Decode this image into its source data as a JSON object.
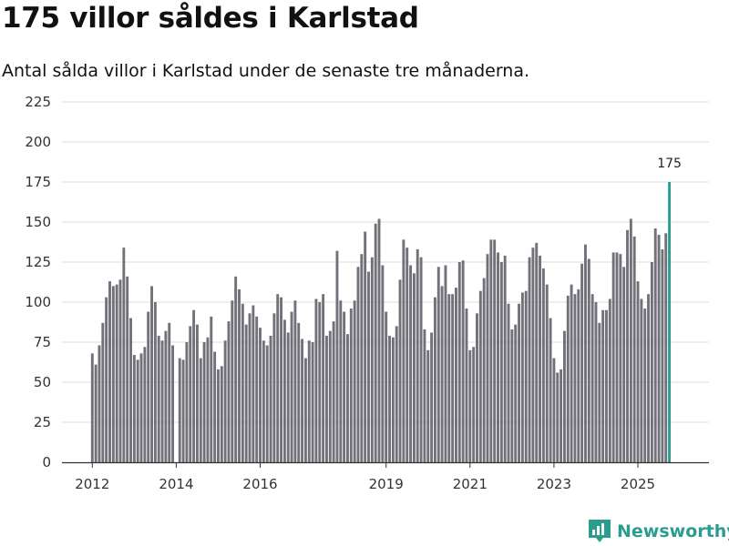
{
  "header": {
    "title": "175 villor såldes i Karlstad",
    "subtitle": "Antal sålda villor i Karlstad under de senaste tre månaderna."
  },
  "brand": {
    "name": "Newsworthy",
    "icon": "chart-bars-icon",
    "color": "#2a9d8f"
  },
  "colors": {
    "bar": "#727078",
    "highlight": "#2a9d8f",
    "grid": "#dddddd",
    "axis": "#333333"
  },
  "chart_data": {
    "type": "bar",
    "title": "175 villor såldes i Karlstad",
    "subtitle": "Antal sålda villor i Karlstad under de senaste tre månaderna.",
    "xlabel": "",
    "ylabel": "",
    "ylim": [
      0,
      225
    ],
    "yticks": [
      "0",
      "25",
      "50",
      "75",
      "100",
      "125",
      "150",
      "175",
      "200",
      "225"
    ],
    "xticks": [
      "2012",
      "2014",
      "2016",
      "2019",
      "2021",
      "2023",
      "2025"
    ],
    "grid": true,
    "x_start": "2012-01",
    "x_end": "2025-12",
    "values": [
      68,
      61,
      73,
      87,
      103,
      113,
      110,
      111,
      114,
      134,
      116,
      90,
      67,
      64,
      68,
      72,
      94,
      110,
      100,
      79,
      76,
      82,
      87,
      73,
      0,
      65,
      64,
      75,
      85,
      95,
      86,
      65,
      75,
      78,
      91,
      69,
      58,
      60,
      76,
      88,
      101,
      116,
      108,
      99,
      86,
      93,
      98,
      91,
      84,
      76,
      73,
      79,
      93,
      105,
      103,
      89,
      81,
      94,
      101,
      87,
      77,
      65,
      76,
      75,
      102,
      100,
      105,
      79,
      82,
      88,
      132,
      101,
      94,
      80,
      96,
      101,
      122,
      130,
      144,
      119,
      128,
      149,
      152,
      123,
      94,
      79,
      78,
      85,
      114,
      139,
      134,
      123,
      118,
      133,
      128,
      83,
      70,
      81,
      103,
      122,
      110,
      123,
      105,
      105,
      109,
      125,
      126,
      96,
      70,
      72,
      93,
      107,
      115,
      130,
      139,
      139,
      131,
      125,
      129,
      99,
      83,
      86,
      99,
      106,
      107,
      128,
      134,
      137,
      129,
      121,
      111,
      90,
      65,
      56,
      58,
      82,
      104,
      111,
      105,
      108,
      124,
      136,
      127,
      105,
      100,
      87,
      95,
      95,
      102,
      131,
      131,
      130,
      122,
      145,
      152,
      141,
      113,
      102,
      96,
      105,
      125,
      146,
      142,
      133,
      143,
      175
    ],
    "highlight": {
      "value": 175,
      "label": "175"
    }
  }
}
